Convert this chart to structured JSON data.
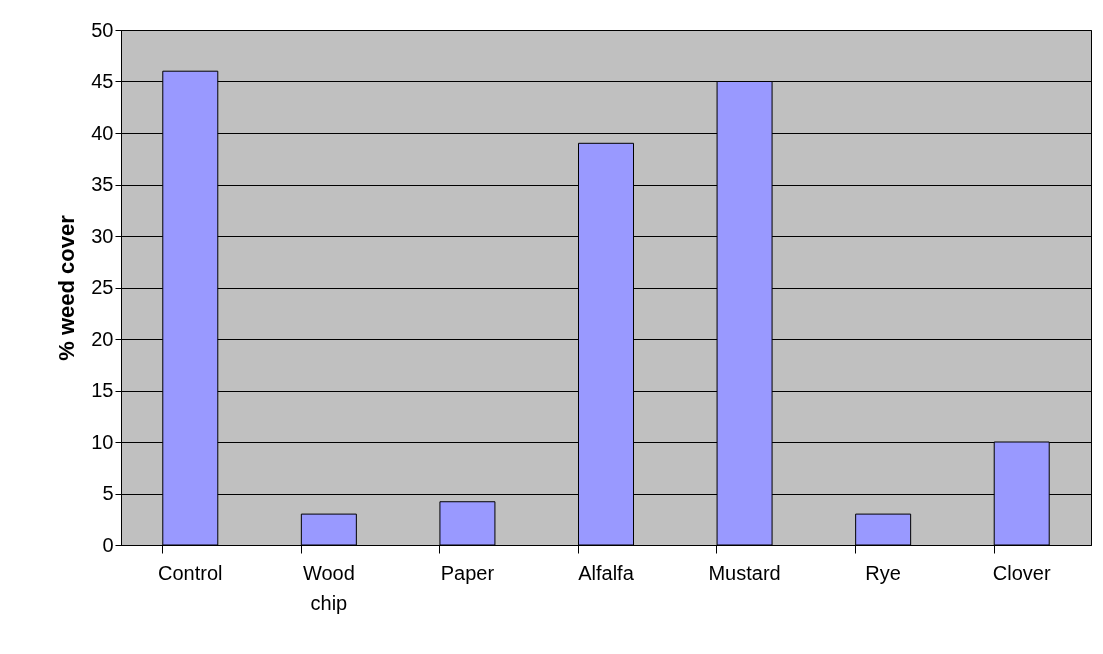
{
  "chart_data": {
    "type": "bar",
    "ylabel": "% weed cover",
    "categories": [
      "Control",
      "Wood chip",
      "Paper",
      "Alfalfa",
      "Mustard",
      "Rye",
      "Clover"
    ],
    "values": [
      46,
      3,
      4.2,
      39,
      45,
      3,
      10
    ],
    "color": "#9999ff",
    "ylim": [
      0,
      50
    ],
    "yticks": [
      0,
      5,
      10,
      15,
      20,
      25,
      30,
      35,
      40,
      45,
      50
    ],
    "grid": "y"
  }
}
